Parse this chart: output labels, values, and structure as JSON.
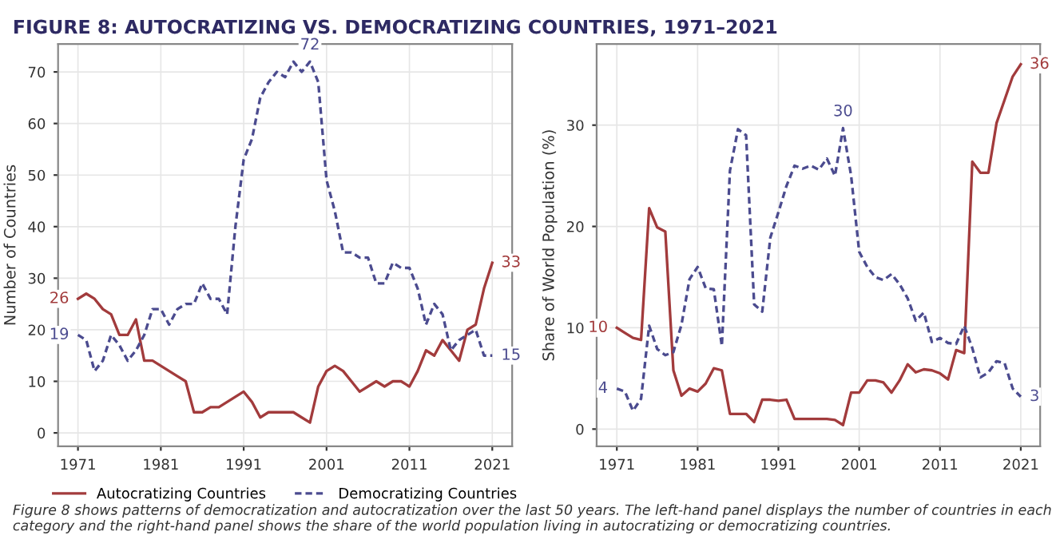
{
  "chart_data": [
    {
      "type": "line",
      "title": "FIGURE 8: AUTOCRATIZING VS. DEMOCRATIZING COUNTRIES, 1971–2021",
      "ylabel": "Number of Countries",
      "x": [
        1971,
        1972,
        1973,
        1974,
        1975,
        1976,
        1977,
        1978,
        1979,
        1980,
        1981,
        1982,
        1983,
        1984,
        1985,
        1986,
        1987,
        1988,
        1989,
        1990,
        1991,
        1992,
        1993,
        1994,
        1995,
        1996,
        1997,
        1998,
        1999,
        2000,
        2001,
        2002,
        2003,
        2004,
        2005,
        2006,
        2007,
        2008,
        2009,
        2010,
        2011,
        2012,
        2013,
        2014,
        2015,
        2016,
        2017,
        2018,
        2019,
        2020,
        2021
      ],
      "series": [
        {
          "name": "Autocratizing Countries",
          "color": "#a23b3c",
          "line_style": "solid",
          "values": [
            26,
            27,
            26,
            24,
            23,
            19,
            19,
            22,
            14,
            14,
            13,
            12,
            11,
            10,
            4,
            4,
            5,
            5,
            6,
            7,
            8,
            6,
            3,
            4,
            4,
            4,
            4,
            3,
            2,
            9,
            12,
            13,
            12,
            10,
            8,
            9,
            10,
            9,
            10,
            10,
            9,
            12,
            16,
            15,
            18,
            16,
            14,
            20,
            21,
            28,
            33
          ]
        },
        {
          "name": "Democratizing Countries",
          "color": "#4b4b8f",
          "line_style": "dashed",
          "values": [
            19,
            18,
            12,
            14,
            19,
            17,
            14,
            16,
            19,
            24,
            24,
            21,
            24,
            25,
            25,
            29,
            26,
            26,
            23,
            40,
            53,
            57,
            65,
            68,
            70,
            69,
            72,
            70,
            72,
            68,
            49,
            43,
            35,
            35,
            34,
            34,
            29,
            29,
            33,
            32,
            32,
            28,
            21,
            25,
            23,
            16,
            18,
            19,
            20,
            15,
            15
          ]
        }
      ],
      "xlim": [
        1968.6,
        2023.4
      ],
      "ylim": [
        -2.6,
        75.4
      ],
      "xticks": [
        1971,
        1981,
        1991,
        2001,
        2011,
        2021
      ],
      "yticks": [
        0,
        10,
        20,
        30,
        40,
        50,
        60,
        70
      ],
      "grid": true,
      "legend": "bottom",
      "annotations": [
        {
          "text": "26",
          "x": 1971,
          "y": 26
        },
        {
          "text": "19",
          "x": 1971,
          "y": 19
        },
        {
          "text": "72",
          "x": 1999,
          "y": 72
        },
        {
          "text": "33",
          "x": 2021,
          "y": 33
        },
        {
          "text": "15",
          "x": 2021,
          "y": 15
        },
        "Figure 8 shows patterns of democratization and autocratization over the last 50 years. The left-hand panel displays the number of countries in each category and the right-hand panel shows the share of the world population living in autocratizing or democratizing countries."
      ]
    },
    {
      "type": "line",
      "ylabel": "Share of World Population (%)",
      "x": [
        1971,
        1972,
        1973,
        1974,
        1975,
        1976,
        1977,
        1978,
        1979,
        1980,
        1981,
        1982,
        1983,
        1984,
        1985,
        1986,
        1987,
        1988,
        1989,
        1990,
        1991,
        1992,
        1993,
        1994,
        1995,
        1996,
        1997,
        1998,
        1999,
        2000,
        2001,
        2002,
        2003,
        2004,
        2005,
        2006,
        2007,
        2008,
        2009,
        2010,
        2011,
        2012,
        2013,
        2014,
        2015,
        2016,
        2017,
        2018,
        2019,
        2020,
        2021
      ],
      "series": [
        {
          "color": "#a23b3c",
          "line_style": "solid",
          "values": [
            10,
            9.5,
            9,
            8.8,
            21.8,
            19.9,
            19.5,
            5.8,
            3.3,
            4,
            3.7,
            4.5,
            6,
            5.8,
            1.5,
            1.5,
            1.5,
            0.7,
            2.9,
            2.9,
            2.8,
            2.9,
            1,
            1,
            1,
            1,
            1,
            0.9,
            0.4,
            3.6,
            3.6,
            4.8,
            4.8,
            4.6,
            3.6,
            4.8,
            6.4,
            5.6,
            5.9,
            5.8,
            5.5,
            4.9,
            7.8,
            7.5,
            26.4,
            25.3,
            25.3,
            30.2,
            32.5,
            34.8,
            36
          ]
        },
        {
          "color": "#4b4b8f",
          "line_style": "dashed",
          "values": [
            4,
            3.7,
            1.8,
            3,
            10.2,
            7.9,
            7.3,
            7.6,
            10.3,
            14.8,
            16,
            13.9,
            13.8,
            8.2,
            25.5,
            29.6,
            29,
            12.3,
            11.6,
            18.9,
            21.4,
            24,
            26,
            25.7,
            26,
            25.6,
            26.7,
            25,
            29.7,
            25,
            17.5,
            16,
            15,
            14.7,
            15.3,
            14.3,
            12.9,
            10.7,
            11.5,
            8.6,
            9,
            8.5,
            8.4,
            10.2,
            8,
            5.1,
            5.6,
            6.7,
            6.5,
            4,
            3.2
          ]
        }
      ],
      "xlim": [
        1968.5,
        2023.4
      ],
      "ylim": [
        -1.7,
        38
      ],
      "xticks": [
        1971,
        1981,
        1991,
        2001,
        2011,
        2021
      ],
      "yticks": [
        0,
        10,
        20,
        30
      ],
      "grid": true,
      "annotations": [
        {
          "text": "10",
          "x": 1971,
          "y": 10
        },
        {
          "text": "4",
          "x": 1971,
          "y": 4
        },
        {
          "text": "30",
          "x": 1999,
          "y": 29.7
        },
        {
          "text": "36",
          "x": 2021,
          "y": 36
        },
        {
          "text": "3",
          "x": 2021,
          "y": 3.2
        }
      ]
    }
  ]
}
